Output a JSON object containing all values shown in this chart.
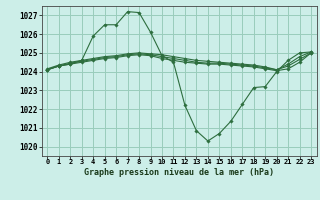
{
  "title": "Graphe pression niveau de la mer (hPa)",
  "bg_color": "#cceee8",
  "grid_color": "#99ccbb",
  "line_color": "#2d6e3e",
  "marker_color": "#2d6e3e",
  "xlim": [
    -0.5,
    23.5
  ],
  "ylim": [
    1019.5,
    1027.5
  ],
  "yticks": [
    1020,
    1021,
    1022,
    1023,
    1024,
    1025,
    1026,
    1027
  ],
  "xtick_labels": [
    "0",
    "1",
    "2",
    "3",
    "4",
    "5",
    "6",
    "7",
    "8",
    "9",
    "10",
    "11",
    "12",
    "13",
    "14",
    "15",
    "16",
    "17",
    "18",
    "19",
    "20",
    "21",
    "22",
    "23"
  ],
  "series": [
    {
      "x": [
        0,
        1,
        2,
        3,
        4,
        5,
        6,
        7,
        8,
        9,
        10,
        11,
        12,
        13,
        14,
        15,
        16,
        17,
        18,
        19,
        20,
        21,
        22,
        23
      ],
      "y": [
        1024.1,
        1024.3,
        1024.4,
        1024.6,
        1025.9,
        1026.5,
        1026.5,
        1027.2,
        1027.15,
        1026.1,
        1024.85,
        1024.5,
        1022.2,
        1020.85,
        1020.3,
        1020.7,
        1021.35,
        1022.25,
        1023.15,
        1023.2,
        1024.0,
        1024.6,
        1025.0,
        1025.05
      ]
    },
    {
      "x": [
        0,
        1,
        2,
        3,
        4,
        5,
        6,
        7,
        8,
        9,
        10,
        11,
        12,
        13,
        14,
        15,
        16,
        17,
        18,
        19,
        20,
        21,
        22,
        23
      ],
      "y": [
        1024.1,
        1024.3,
        1024.4,
        1024.5,
        1024.6,
        1024.7,
        1024.75,
        1024.85,
        1024.9,
        1024.85,
        1024.7,
        1024.6,
        1024.5,
        1024.45,
        1024.4,
        1024.4,
        1024.35,
        1024.3,
        1024.25,
        1024.15,
        1024.05,
        1024.15,
        1024.5,
        1025.0
      ]
    },
    {
      "x": [
        0,
        1,
        2,
        3,
        4,
        5,
        6,
        7,
        8,
        9,
        10,
        11,
        12,
        13,
        14,
        15,
        16,
        17,
        18,
        19,
        20,
        21,
        22,
        23
      ],
      "y": [
        1024.1,
        1024.3,
        1024.45,
        1024.55,
        1024.65,
        1024.75,
        1024.8,
        1024.9,
        1024.95,
        1024.9,
        1024.8,
        1024.7,
        1024.6,
        1024.5,
        1024.45,
        1024.45,
        1024.4,
        1024.35,
        1024.3,
        1024.2,
        1024.1,
        1024.3,
        1024.65,
        1025.0
      ]
    },
    {
      "x": [
        0,
        1,
        2,
        3,
        4,
        5,
        6,
        7,
        8,
        9,
        10,
        11,
        12,
        13,
        14,
        15,
        16,
        17,
        18,
        19,
        20,
        21,
        22,
        23
      ],
      "y": [
        1024.15,
        1024.35,
        1024.5,
        1024.6,
        1024.7,
        1024.8,
        1024.85,
        1024.95,
        1025.0,
        1024.95,
        1024.9,
        1024.8,
        1024.7,
        1024.6,
        1024.55,
        1024.5,
        1024.45,
        1024.4,
        1024.35,
        1024.25,
        1024.1,
        1024.4,
        1024.8,
        1025.05
      ]
    }
  ]
}
